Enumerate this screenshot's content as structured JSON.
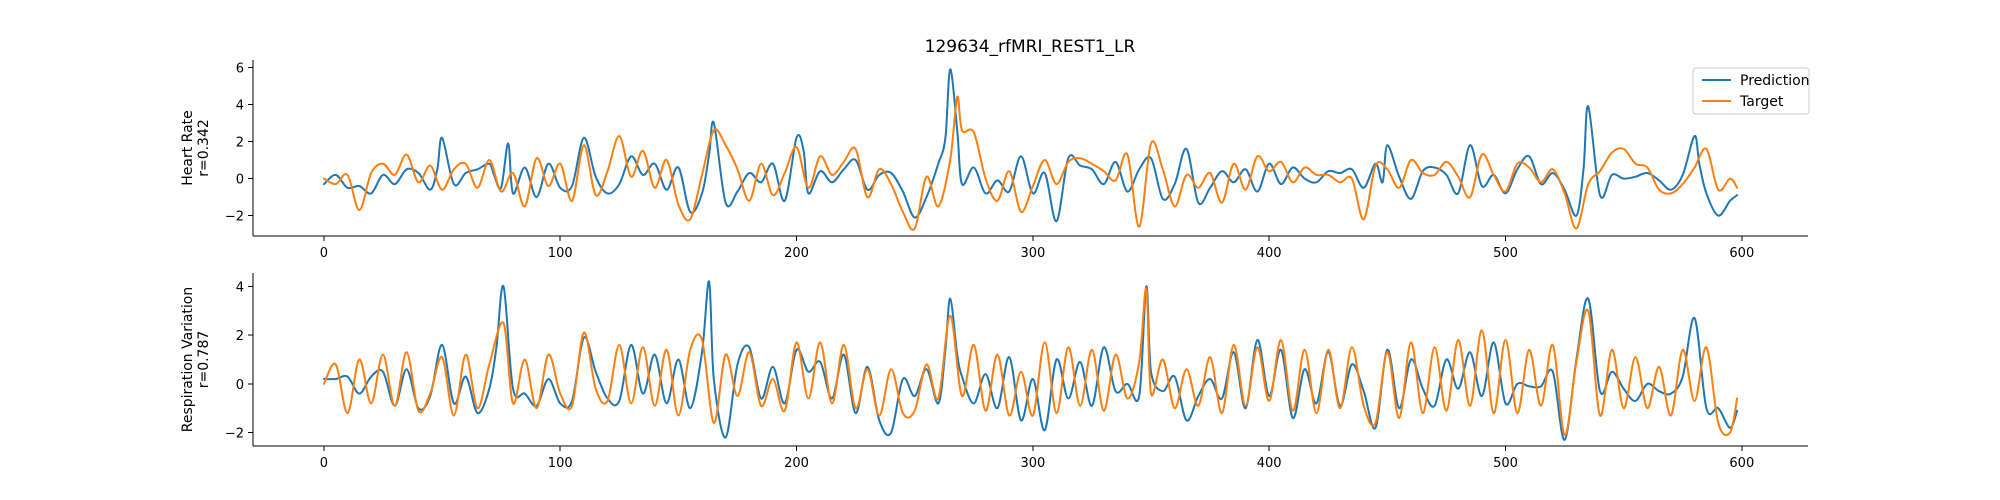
{
  "chart_data": [
    {
      "type": "line",
      "title": "129634_rfMRI_REST1_LR",
      "ylabel_lines": [
        "Heart Rate",
        "r=0.342"
      ],
      "xlim": [
        -30,
        628
      ],
      "ylim": [
        -3.1,
        6.4
      ],
      "x_ticks": [
        0,
        100,
        200,
        300,
        400,
        500,
        600
      ],
      "y_ticks": [
        -2,
        0,
        2,
        4,
        6
      ],
      "legend": {
        "position": "top-right",
        "entries": [
          "Prediction",
          "Target"
        ]
      },
      "grid": false,
      "series": [
        {
          "name": "Prediction",
          "color": "#1f77b4",
          "x": [
            0,
            5,
            10,
            15,
            20,
            25,
            30,
            35,
            40,
            45,
            48,
            50,
            55,
            60,
            65,
            70,
            72,
            75,
            78,
            80,
            85,
            90,
            95,
            100,
            105,
            110,
            115,
            120,
            125,
            130,
            135,
            140,
            145,
            150,
            155,
            160,
            163,
            165,
            170,
            175,
            180,
            185,
            190,
            195,
            200,
            203,
            205,
            210,
            215,
            220,
            225,
            230,
            235,
            240,
            245,
            250,
            255,
            260,
            263,
            265,
            268,
            270,
            275,
            280,
            285,
            290,
            295,
            300,
            305,
            310,
            315,
            320,
            325,
            330,
            335,
            340,
            345,
            350,
            355,
            360,
            365,
            370,
            375,
            380,
            385,
            390,
            395,
            400,
            405,
            410,
            415,
            420,
            425,
            430,
            435,
            440,
            445,
            448,
            450,
            455,
            460,
            465,
            470,
            475,
            480,
            485,
            490,
            495,
            500,
            505,
            510,
            515,
            520,
            525,
            530,
            533,
            535,
            540,
            545,
            550,
            555,
            560,
            565,
            570,
            575,
            580,
            582,
            585,
            590,
            595,
            598
          ],
          "y": [
            -0.3,
            0.2,
            -0.5,
            -0.4,
            -0.8,
            0.2,
            -0.3,
            0.5,
            0.3,
            -0.6,
            0.5,
            2.2,
            -0.3,
            0.3,
            0.5,
            0.8,
            0.2,
            -0.5,
            1.9,
            -0.8,
            0.6,
            -1.0,
            0.8,
            -0.5,
            -0.4,
            2.2,
            0.1,
            -0.8,
            -0.3,
            1.2,
            0.2,
            0.8,
            -0.6,
            0.6,
            -1.8,
            -0.8,
            1.3,
            3.0,
            -1.3,
            -0.7,
            0.3,
            -0.2,
            0.8,
            -1.2,
            2.2,
            1.5,
            -0.8,
            0.4,
            -0.2,
            0.5,
            1.0,
            -0.6,
            0.2,
            0.3,
            -0.7,
            -2.1,
            -1.0,
            0.8,
            2.2,
            5.9,
            2.6,
            -0.3,
            0.6,
            -0.8,
            -0.1,
            -0.7,
            1.2,
            -0.8,
            0.3,
            -2.3,
            1.1,
            0.7,
            0.5,
            -0.3,
            0.9,
            -0.7,
            0.5,
            1.1,
            -1.1,
            -0.3,
            1.6,
            -1.3,
            -0.5,
            0.4,
            -0.2,
            0.5,
            -0.7,
            0.8,
            -0.3,
            0.6,
            0.0,
            -0.2,
            0.4,
            0.3,
            0.5,
            -0.5,
            0.8,
            -0.2,
            1.8,
            0.1,
            -1.1,
            0.4,
            0.6,
            0.2,
            -0.8,
            1.8,
            -0.4,
            0.2,
            -0.8,
            0.5,
            1.2,
            -0.3,
            0.3,
            -0.6,
            -2.0,
            0.5,
            3.9,
            -0.9,
            0.2,
            0.0,
            0.1,
            0.3,
            -0.1,
            -0.6,
            0.2,
            2.3,
            0.8,
            -0.8,
            -2.0,
            -1.2,
            -0.9
          ]
        },
        {
          "name": "Target",
          "color": "#ff7f0e",
          "x": [
            0,
            5,
            10,
            15,
            20,
            25,
            30,
            35,
            40,
            45,
            50,
            55,
            60,
            65,
            70,
            75,
            80,
            85,
            90,
            95,
            100,
            105,
            110,
            115,
            120,
            125,
            130,
            135,
            140,
            145,
            150,
            155,
            160,
            165,
            170,
            175,
            180,
            185,
            190,
            195,
            200,
            205,
            210,
            215,
            220,
            225,
            230,
            235,
            240,
            245,
            250,
            255,
            260,
            265,
            268,
            270,
            275,
            280,
            285,
            290,
            295,
            300,
            305,
            310,
            315,
            320,
            325,
            330,
            335,
            340,
            345,
            350,
            355,
            360,
            365,
            370,
            375,
            380,
            385,
            390,
            395,
            400,
            405,
            410,
            415,
            420,
            425,
            430,
            435,
            440,
            445,
            450,
            455,
            460,
            465,
            470,
            475,
            480,
            485,
            490,
            495,
            500,
            505,
            510,
            515,
            520,
            525,
            530,
            535,
            540,
            545,
            550,
            555,
            560,
            565,
            570,
            575,
            580,
            585,
            590,
            595,
            598
          ],
          "y": [
            0.0,
            -0.3,
            0.2,
            -1.7,
            0.3,
            0.8,
            0.2,
            1.3,
            -0.2,
            0.7,
            -0.6,
            0.5,
            0.8,
            -0.5,
            1.0,
            -0.7,
            0.3,
            -1.5,
            1.1,
            -0.4,
            0.8,
            -1.2,
            1.8,
            -0.9,
            0.4,
            2.3,
            0.1,
            1.5,
            -0.5,
            1.0,
            -1.4,
            -2.2,
            0.2,
            2.6,
            1.8,
            0.5,
            -1.2,
            0.8,
            -0.9,
            0.3,
            1.7,
            -0.5,
            1.2,
            0.2,
            0.9,
            1.6,
            -1.0,
            0.5,
            -0.3,
            -1.8,
            -2.7,
            0.1,
            -1.5,
            1.0,
            4.4,
            2.6,
            2.5,
            0.0,
            -1.2,
            0.4,
            -1.8,
            -0.4,
            1.0,
            -0.3,
            0.9,
            1.1,
            0.8,
            0.4,
            -0.1,
            1.3,
            -2.6,
            1.9,
            0.5,
            -1.5,
            0.2,
            -0.5,
            0.3,
            -1.3,
            0.8,
            -0.6,
            1.2,
            0.4,
            0.9,
            -0.2,
            0.6,
            0.2,
            0.2,
            -0.2,
            0.0,
            -2.2,
            0.7,
            0.5,
            -0.5,
            1.0,
            0.3,
            0.2,
            0.9,
            0.1,
            -1.0,
            1.3,
            0.2,
            -0.7,
            0.8,
            0.6,
            -0.2,
            0.5,
            -0.8,
            -2.7,
            -0.3,
            0.4,
            1.4,
            1.6,
            0.8,
            0.6,
            -0.6,
            -0.8,
            -0.3,
            0.6,
            1.6,
            -0.6,
            0.0,
            -0.5
          ]
        }
      ]
    },
    {
      "type": "line",
      "ylabel_lines": [
        "Respiration Variation",
        "r=0.787"
      ],
      "xlim": [
        -30,
        628
      ],
      "ylim": [
        -2.55,
        4.55
      ],
      "x_ticks": [
        0,
        100,
        200,
        300,
        400,
        500,
        600
      ],
      "y_ticks": [
        -2,
        0,
        2,
        4
      ],
      "grid": false,
      "series": [
        {
          "name": "Prediction",
          "color": "#1f77b4",
          "x": [
            0,
            5,
            10,
            15,
            20,
            25,
            30,
            35,
            40,
            45,
            50,
            55,
            60,
            65,
            70,
            73,
            76,
            80,
            85,
            90,
            95,
            100,
            105,
            110,
            115,
            120,
            125,
            130,
            135,
            140,
            145,
            150,
            155,
            160,
            163,
            165,
            170,
            175,
            180,
            185,
            190,
            195,
            200,
            205,
            210,
            215,
            220,
            225,
            230,
            235,
            240,
            245,
            250,
            255,
            260,
            263,
            265,
            268,
            270,
            275,
            280,
            285,
            290,
            295,
            300,
            305,
            310,
            315,
            320,
            325,
            330,
            335,
            340,
            345,
            348,
            350,
            355,
            360,
            365,
            370,
            375,
            380,
            385,
            390,
            395,
            400,
            405,
            410,
            415,
            420,
            425,
            430,
            435,
            440,
            445,
            450,
            455,
            460,
            465,
            470,
            475,
            480,
            485,
            490,
            495,
            500,
            505,
            510,
            515,
            520,
            525,
            530,
            535,
            540,
            545,
            550,
            555,
            560,
            565,
            570,
            575,
            580,
            585,
            590,
            595,
            598
          ],
          "y": [
            0.2,
            0.2,
            0.3,
            -0.4,
            0.3,
            0.5,
            -0.9,
            0.6,
            -1.0,
            -0.5,
            1.6,
            -0.8,
            0.3,
            -1.2,
            -0.2,
            1.5,
            4.0,
            -0.2,
            -0.4,
            -0.9,
            0.2,
            -0.8,
            -0.7,
            1.9,
            0.5,
            -0.6,
            -0.7,
            1.6,
            -0.4,
            1.2,
            -0.8,
            1.0,
            -1.0,
            1.3,
            4.2,
            0.2,
            -2.2,
            0.8,
            1.5,
            -0.6,
            0.7,
            -0.8,
            1.4,
            0.5,
            0.9,
            -0.6,
            1.2,
            -1.2,
            0.7,
            -1.5,
            -2.0,
            0.2,
            -0.5,
            0.6,
            -0.8,
            1.4,
            3.5,
            1.2,
            0.3,
            -0.8,
            0.4,
            -1.0,
            1.1,
            -1.5,
            0.2,
            -1.9,
            1.0,
            -0.6,
            0.9,
            -0.9,
            1.5,
            -0.3,
            0.0,
            -0.5,
            4.0,
            0.5,
            -0.3,
            0.3,
            -1.5,
            -0.5,
            0.2,
            -0.6,
            1.3,
            -1.0,
            1.8,
            -0.5,
            1.4,
            -1.4,
            0.6,
            -0.8,
            1.3,
            -0.9,
            0.8,
            -0.3,
            -1.8,
            1.4,
            -1.0,
            1.0,
            -0.2,
            -0.9,
            1.0,
            -0.2,
            1.3,
            -0.5,
            1.7,
            -0.8,
            0.0,
            -0.1,
            -0.1,
            0.5,
            -2.3,
            1.0,
            3.5,
            -0.3,
            0.5,
            -0.2,
            -0.7,
            0.0,
            -0.3,
            -0.4,
            0.3,
            2.7,
            -1.0,
            -1.0,
            -1.8,
            -1.1
          ]
        },
        {
          "name": "Target",
          "color": "#ff7f0e",
          "x": [
            0,
            5,
            10,
            15,
            20,
            25,
            30,
            35,
            40,
            45,
            50,
            55,
            60,
            65,
            70,
            76,
            80,
            85,
            90,
            95,
            100,
            105,
            110,
            115,
            120,
            125,
            130,
            135,
            140,
            145,
            150,
            155,
            160,
            165,
            170,
            175,
            180,
            185,
            190,
            195,
            200,
            205,
            210,
            215,
            220,
            225,
            230,
            235,
            240,
            245,
            250,
            255,
            260,
            265,
            270,
            275,
            280,
            285,
            290,
            295,
            300,
            305,
            310,
            315,
            320,
            325,
            330,
            335,
            340,
            345,
            348,
            350,
            355,
            360,
            365,
            370,
            375,
            380,
            385,
            390,
            395,
            400,
            405,
            410,
            415,
            420,
            425,
            430,
            435,
            440,
            445,
            450,
            455,
            460,
            465,
            470,
            475,
            480,
            485,
            490,
            495,
            500,
            505,
            510,
            515,
            520,
            525,
            530,
            535,
            540,
            545,
            550,
            555,
            560,
            565,
            570,
            575,
            580,
            585,
            590,
            595,
            598
          ],
          "y": [
            0.0,
            0.8,
            -1.2,
            1.0,
            -0.8,
            1.2,
            -0.9,
            1.3,
            -1.1,
            -0.4,
            1.1,
            -1.3,
            1.2,
            -1.0,
            0.8,
            2.5,
            -0.8,
            1.0,
            -1.0,
            1.2,
            -0.4,
            -0.9,
            2.1,
            -0.2,
            -0.7,
            1.6,
            -0.8,
            1.5,
            -0.9,
            1.4,
            -1.3,
            1.4,
            1.8,
            -1.6,
            1.2,
            -0.5,
            1.3,
            -0.9,
            0.2,
            -1.1,
            1.7,
            -0.6,
            1.7,
            -0.8,
            1.6,
            -1.0,
            0.6,
            -1.3,
            0.6,
            -1.2,
            -1.1,
            0.8,
            -0.6,
            2.8,
            -0.5,
            1.6,
            -1.1,
            1.2,
            -1.3,
            0.5,
            -1.3,
            1.7,
            -1.2,
            1.5,
            -0.9,
            1.4,
            -1.1,
            1.2,
            -0.6,
            0.9,
            3.9,
            -0.4,
            1.0,
            -1.0,
            0.6,
            -0.9,
            1.1,
            -1.2,
            1.6,
            -0.9,
            1.5,
            -0.7,
            1.8,
            -1.1,
            1.4,
            -1.2,
            1.4,
            -1.0,
            1.5,
            -0.9,
            -1.6,
            1.3,
            -1.4,
            1.7,
            -1.2,
            1.5,
            -1.1,
            1.8,
            -0.9,
            2.2,
            -1.2,
            1.8,
            -1.2,
            1.4,
            -0.9,
            1.6,
            -2.1,
            0.9,
            3.0,
            -1.3,
            1.4,
            -1.0,
            1.1,
            -1.0,
            0.7,
            -1.3,
            1.4,
            -0.7,
            1.5,
            -1.6,
            -2.0,
            -0.6
          ]
        }
      ]
    }
  ]
}
